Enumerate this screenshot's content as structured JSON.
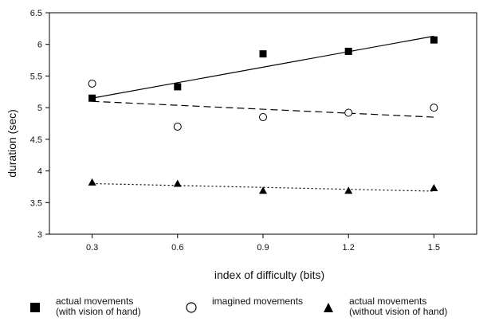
{
  "chart_data": {
    "type": "scatter",
    "xlabel": "index of difficulty (bits)",
    "ylabel": "duration (sec)",
    "xlim": [
      0.15,
      1.65
    ],
    "ylim": [
      3,
      6.5
    ],
    "xticks": [
      0.3,
      0.6,
      0.9,
      1.2,
      1.5
    ],
    "xtick_labels": [
      "0.3",
      "0.6",
      "0.9",
      "1.2",
      "1.5"
    ],
    "yticks": [
      3,
      3.5,
      4,
      4.5,
      5,
      5.5,
      6,
      6.5
    ],
    "ytick_labels": [
      "3",
      "3.5",
      "4",
      "4.5",
      "5",
      "5.5",
      "6",
      "6.5"
    ],
    "grid": false,
    "legend_position": "bottom",
    "series": [
      {
        "name": "actual movements (with vision of hand)",
        "legend_lines": [
          "actual movements",
          "(with vision of hand)"
        ],
        "marker": "square",
        "line": "solid",
        "x": [
          0.3,
          0.6,
          0.9,
          1.2,
          1.5
        ],
        "y": [
          5.15,
          5.33,
          5.85,
          5.89,
          6.07
        ],
        "fit": [
          [
            0.3,
            5.15
          ],
          [
            1.5,
            6.13
          ]
        ]
      },
      {
        "name": "imagined movements",
        "legend_lines": [
          "imagined movements"
        ],
        "marker": "circle",
        "line": "dashed",
        "x": [
          0.3,
          0.6,
          0.9,
          1.2,
          1.5
        ],
        "y": [
          5.38,
          4.7,
          4.85,
          4.92,
          5.0
        ],
        "fit": [
          [
            0.3,
            5.1
          ],
          [
            1.5,
            4.85
          ]
        ]
      },
      {
        "name": "actual movements (without vision of hand)",
        "legend_lines": [
          "actual movements",
          "(without vision of hand)"
        ],
        "marker": "triangle",
        "line": "dotted",
        "x": [
          0.3,
          0.6,
          0.9,
          1.2,
          1.5
        ],
        "y": [
          3.82,
          3.8,
          3.69,
          3.69,
          3.73
        ],
        "fit": [
          [
            0.3,
            3.8
          ],
          [
            1.5,
            3.68
          ]
        ]
      }
    ]
  }
}
